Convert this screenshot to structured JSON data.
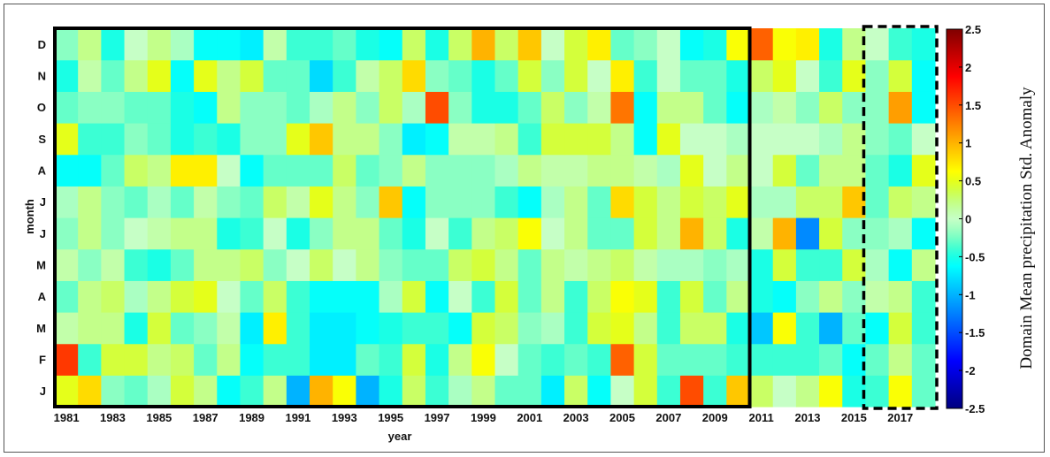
{
  "chart_data": {
    "type": "heatmap",
    "title": "",
    "xlabel": "year",
    "ylabel": "month",
    "colorbar_label": "Domain Mean precipitation Std. Anomaly",
    "colorbar_range": [
      -2.5,
      2.5
    ],
    "colorbar_ticks": [
      "2.5",
      "2",
      "1.5",
      "1",
      "0.5",
      "0",
      "-0.5",
      "-1",
      "-1.5",
      "-2",
      "-2.5"
    ],
    "colormap": "jet",
    "x_start_year": 1981,
    "x_end_year": 2018,
    "x_tick_labels": [
      "1981",
      "1983",
      "1985",
      "1987",
      "1989",
      "1991",
      "1993",
      "1995",
      "1997",
      "1999",
      "2001",
      "2003",
      "2005",
      "2007",
      "2009",
      "2011",
      "2013",
      "2015",
      "2017"
    ],
    "y_tick_labels": [
      "D",
      "N",
      "O",
      "S",
      "A",
      "J",
      "J",
      "M",
      "A",
      "M",
      "F",
      "J"
    ],
    "highlight_boxes": [
      {
        "style": "solid",
        "years": [
          1981,
          2010
        ]
      },
      {
        "style": "dashed",
        "years": [
          2016,
          2018
        ]
      }
    ],
    "rows": [
      {
        "month": "J",
        "values": [
          0.5,
          0.8,
          -0.2,
          -0.3,
          -0.1,
          0.4,
          0.2,
          -0.6,
          -0.4,
          0.2,
          -1.0,
          1.0,
          0.6,
          -1.0,
          -0.5,
          0.3,
          -0.4,
          -0.1,
          0.2,
          -0.3,
          -0.3,
          -0.7,
          0.3,
          -0.6,
          0.0,
          0.4,
          -0.4,
          1.5,
          -0.4,
          0.9,
          0.3,
          0.0,
          0.2,
          0.6,
          -0.5,
          -0.4,
          0.6,
          -0.3
        ]
      },
      {
        "month": "F",
        "values": [
          1.6,
          -0.4,
          0.4,
          0.4,
          0.2,
          0.3,
          -0.3,
          0.2,
          -0.6,
          -0.4,
          -0.4,
          -0.7,
          -0.7,
          -0.3,
          -0.4,
          0.4,
          -0.5,
          0.2,
          0.6,
          0.0,
          -0.3,
          -0.4,
          -0.3,
          -0.4,
          1.4,
          0.4,
          -0.3,
          -0.3,
          -0.3,
          -0.4,
          -0.4,
          -0.4,
          -0.4,
          -0.3,
          -0.6,
          -0.3,
          0.2,
          -0.3
        ]
      },
      {
        "month": "M",
        "values": [
          0.1,
          0.2,
          0.2,
          -0.5,
          0.4,
          -0.3,
          -0.2,
          0.1,
          -0.7,
          0.7,
          -0.4,
          -0.7,
          -0.7,
          -0.6,
          -0.5,
          -0.4,
          -0.4,
          -0.6,
          0.4,
          0.3,
          -0.2,
          -0.1,
          -0.4,
          0.4,
          0.5,
          0.2,
          -0.4,
          0.3,
          0.3,
          -0.5,
          -0.9,
          0.6,
          -0.4,
          -1.0,
          -0.3,
          -0.6,
          0.4,
          -0.4
        ]
      },
      {
        "month": "A",
        "values": [
          -0.3,
          0.2,
          0.3,
          -0.1,
          0.2,
          0.4,
          0.5,
          -0.0,
          -0.3,
          0.3,
          -0.4,
          -0.6,
          -0.6,
          -0.6,
          -0.1,
          0.4,
          -0.6,
          0.0,
          -0.4,
          0.4,
          -0.3,
          0.2,
          -0.4,
          0.3,
          0.6,
          0.5,
          -0.4,
          0.4,
          -0.3,
          0.2,
          -0.5,
          -0.6,
          -0.2,
          0.2,
          -0.2,
          0.1,
          0.2,
          -0.4
        ]
      },
      {
        "month": "M",
        "values": [
          0.1,
          -0.2,
          0.1,
          -0.4,
          -0.5,
          -0.3,
          0.2,
          0.2,
          0.3,
          -0.2,
          0.0,
          0.3,
          -0.0,
          0.2,
          -0.2,
          -0.3,
          -0.3,
          0.3,
          0.4,
          0.2,
          -0.3,
          0.2,
          0.1,
          0.2,
          0.3,
          0.1,
          -0.1,
          -0.1,
          -0.2,
          -0.1,
          -0.5,
          0.4,
          -0.4,
          -0.4,
          0.4,
          -0.1,
          -0.6,
          0.2
        ]
      },
      {
        "month": "J",
        "values": [
          -0.2,
          0.2,
          -0.2,
          0.0,
          0.1,
          0.2,
          0.2,
          -0.5,
          -0.4,
          0.0,
          -0.5,
          -0.2,
          0.2,
          0.2,
          -0.3,
          -0.5,
          0.0,
          -0.4,
          0.2,
          0.3,
          0.6,
          0.0,
          0.2,
          -0.3,
          -0.3,
          0.4,
          0.2,
          1.0,
          0.3,
          -0.5,
          0.1,
          1.0,
          -1.2,
          0.4,
          -0.2,
          -0.2,
          -0.1,
          -0.6
        ]
      },
      {
        "month": "J",
        "values": [
          -0.1,
          0.2,
          -0.2,
          -0.3,
          -0.1,
          -0.3,
          0.1,
          -0.2,
          -0.3,
          0.3,
          0.1,
          0.5,
          0.2,
          -0.2,
          0.9,
          -0.6,
          -0.2,
          -0.2,
          -0.2,
          -0.4,
          -0.6,
          -0.1,
          0.2,
          -0.3,
          0.8,
          0.4,
          0.2,
          0.4,
          0.3,
          0.5,
          -0.1,
          -0.1,
          0.3,
          0.3,
          0.9,
          -0.3,
          0.3,
          0.2
        ]
      },
      {
        "month": "A",
        "values": [
          -0.6,
          -0.6,
          -0.3,
          0.3,
          0.2,
          0.7,
          0.7,
          0.0,
          -0.6,
          -0.3,
          -0.3,
          -0.3,
          0.3,
          -0.3,
          -0.2,
          0.2,
          -0.2,
          -0.2,
          -0.2,
          -0.1,
          0.2,
          0.1,
          0.1,
          0.2,
          0.2,
          0.1,
          -0.1,
          0.5,
          0.0,
          0.2,
          -0.0,
          0.4,
          -0.3,
          0.2,
          0.2,
          -0.3,
          -0.5,
          0.5
        ]
      },
      {
        "month": "S",
        "values": [
          0.5,
          -0.4,
          -0.4,
          -0.2,
          -0.3,
          -0.5,
          -0.4,
          -0.5,
          -0.2,
          -0.2,
          0.5,
          0.9,
          0.2,
          0.2,
          -0.2,
          -0.7,
          -0.6,
          0.1,
          0.1,
          0.2,
          -0.4,
          0.4,
          0.4,
          0.4,
          0.2,
          -0.6,
          0.5,
          0.0,
          0.0,
          -0.1,
          0.0,
          0.0,
          0.0,
          -0.1,
          0.2,
          -0.2,
          -0.3,
          0.0
        ]
      },
      {
        "month": "O",
        "values": [
          -0.3,
          -0.2,
          -0.2,
          -0.3,
          -0.3,
          -0.5,
          -0.6,
          0.2,
          -0.2,
          -0.2,
          -0.3,
          -0.1,
          0.2,
          -0.2,
          0.3,
          -0.1,
          1.5,
          -0.2,
          -0.5,
          -0.5,
          -0.3,
          0.3,
          -0.2,
          0.1,
          1.3,
          -0.6,
          0.2,
          0.2,
          -0.3,
          -0.6,
          -0.1,
          0.1,
          -0.2,
          0.3,
          -0.2,
          -0.2,
          1.1,
          -0.6
        ]
      },
      {
        "month": "N",
        "values": [
          -0.5,
          0.1,
          -0.3,
          0.2,
          0.5,
          -0.6,
          0.5,
          0.2,
          0.4,
          -0.3,
          -0.3,
          -0.8,
          -0.4,
          0.1,
          0.3,
          0.8,
          -0.2,
          -0.3,
          -0.5,
          -0.3,
          0.4,
          -0.2,
          0.4,
          0.0,
          0.7,
          -0.4,
          0.0,
          -0.3,
          -0.3,
          -0.5,
          0.3,
          0.5,
          0.0,
          -0.4,
          0.5,
          -0.2,
          0.4,
          -0.6
        ]
      },
      {
        "month": "D",
        "values": [
          -0.2,
          0.2,
          -0.5,
          0.0,
          0.2,
          -0.1,
          -0.6,
          -0.6,
          -0.7,
          0.1,
          -0.4,
          -0.4,
          -0.3,
          -0.5,
          -0.6,
          0.3,
          -0.5,
          0.3,
          1.0,
          0.3,
          0.9,
          0.0,
          0.4,
          0.7,
          -0.3,
          -0.2,
          0.0,
          -0.6,
          -0.5,
          0.6,
          1.4,
          0.6,
          0.7,
          -0.5,
          0.2,
          0.0,
          -0.4,
          -0.5
        ]
      }
    ]
  }
}
